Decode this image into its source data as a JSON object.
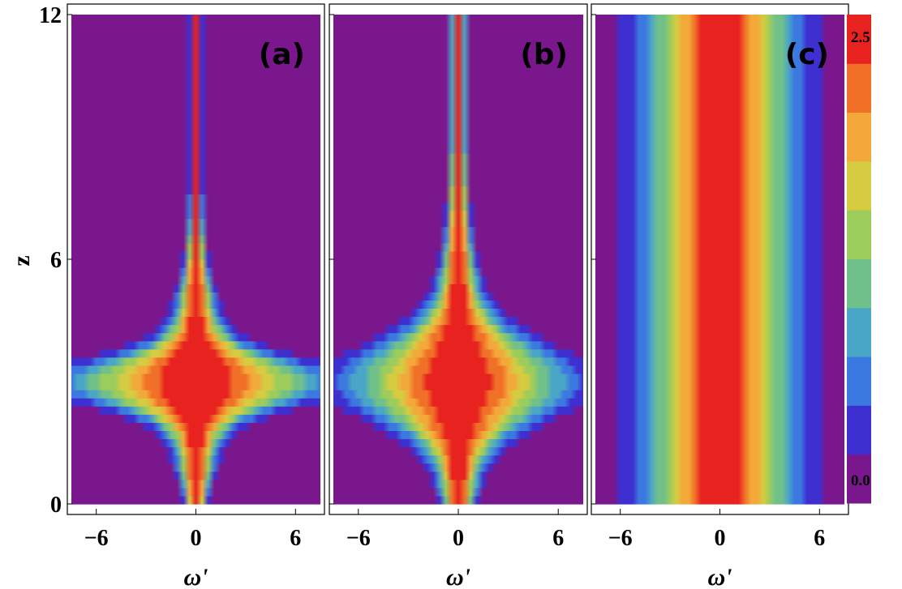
{
  "chart_data": {
    "type": "heatmap",
    "colormap": [
      "#7b178c",
      "#3e2fd0",
      "#3b78e0",
      "#4aa6c6",
      "#70c08a",
      "#9ccc5c",
      "#d5cc42",
      "#f2a93a",
      "#f07028",
      "#e8221f"
    ],
    "panels": [
      {
        "label": "(a)",
        "xlabel": "ω'",
        "xticks": [
          "−6",
          "0",
          "6"
        ],
        "xlim": [
          -7.5,
          7.5
        ],
        "ylim": [
          0,
          12
        ]
      },
      {
        "label": "(b)",
        "xlabel": "ω'",
        "xticks": [
          "−6",
          "0",
          "6"
        ],
        "xlim": [
          -7.5,
          7.5
        ],
        "ylim": [
          0,
          12
        ]
      },
      {
        "label": "(c)",
        "xlabel": "ω'",
        "xticks": [
          "−6",
          "0",
          "6"
        ],
        "xlim": [
          -7.5,
          7.5
        ],
        "ylim": [
          0,
          12
        ]
      }
    ],
    "ylabel": "z",
    "yticks": [
      "0",
      "6",
      "12"
    ],
    "ytick_values": [
      0,
      6,
      12
    ],
    "xtick_values": [
      -6,
      0,
      6
    ],
    "colorbar": {
      "min_label": "0.0",
      "max_label": "2.5",
      "range": [
        0,
        2.5
      ],
      "levels": 10
    }
  }
}
